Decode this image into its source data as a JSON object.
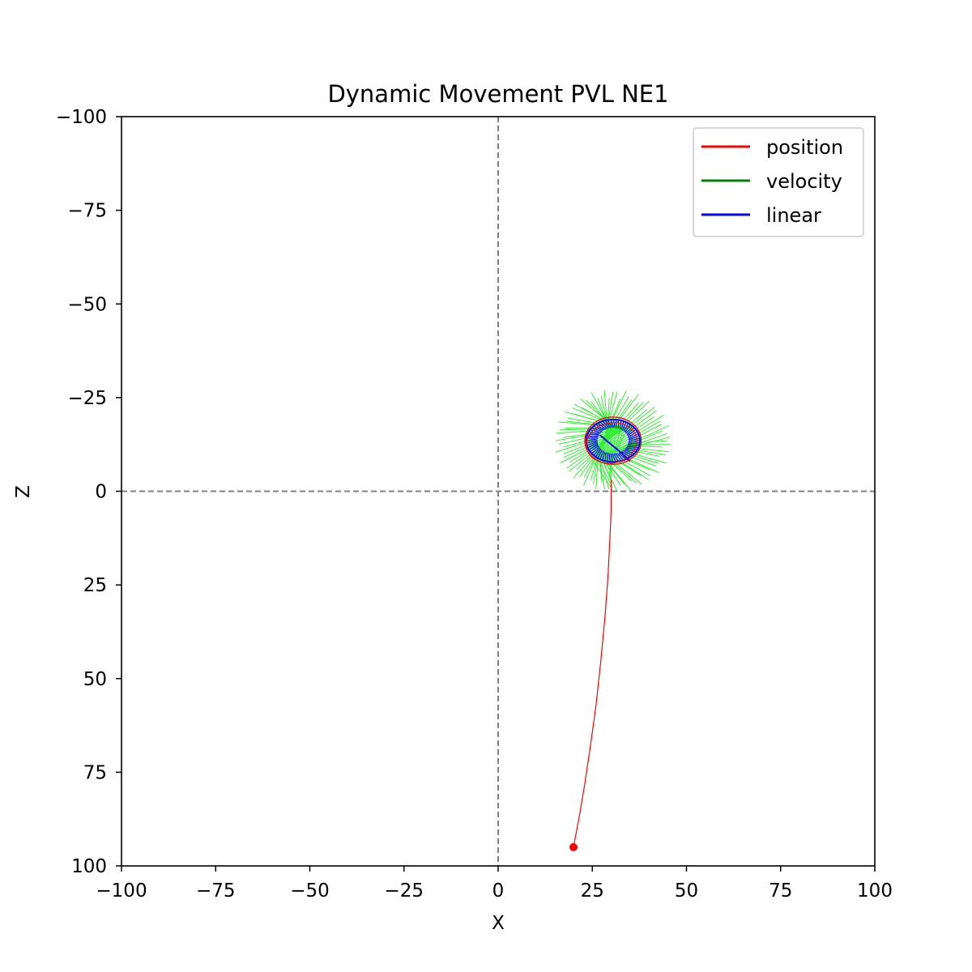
{
  "chart_data": {
    "type": "line",
    "title": "Dynamic Movement PVL NE1",
    "xlabel": "X",
    "ylabel": "Z",
    "xlim": [
      -100,
      100
    ],
    "ylim": [
      -100,
      100
    ],
    "y_inverted": true,
    "xticks": [
      -100,
      -75,
      -50,
      -25,
      0,
      25,
      50,
      75,
      100
    ],
    "yticks": [
      -100,
      -75,
      -50,
      -25,
      0,
      25,
      50,
      75,
      100
    ],
    "xtick_labels": [
      "−100",
      "−75",
      "−50",
      "−25",
      "0",
      "25",
      "50",
      "75",
      "100"
    ],
    "ytick_labels": [
      "−100",
      "−75",
      "−50",
      "−25",
      "0",
      "25",
      "50",
      "75",
      "100"
    ],
    "grid": false,
    "reference_lines": {
      "x": 0,
      "y": 0,
      "style": "dashed",
      "color": "#808080"
    },
    "legend": {
      "placement": "top-right",
      "entries": [
        {
          "label": "position",
          "color": "#ff0000"
        },
        {
          "label": "velocity",
          "color": "#008000"
        },
        {
          "label": "linear",
          "color": "#0000ff"
        }
      ]
    },
    "series": [
      {
        "name": "position",
        "color": "#ff0000",
        "x": [
          20,
          21.5,
          23,
          24.5,
          26,
          27.3,
          28.4,
          29.2,
          29.7,
          30,
          30,
          30,
          30
        ],
        "y": [
          95,
          87,
          78,
          68,
          57,
          45,
          33,
          22,
          12,
          5,
          1,
          -1,
          -3
        ]
      },
      {
        "name": "position-loop",
        "color": "#ff0000",
        "center": [
          30.5,
          -13.5
        ],
        "radius_x": 7.5,
        "radius_y": 6.3
      }
    ],
    "start_marker": {
      "x": 20,
      "y": 95,
      "color": "#ff0000"
    },
    "velocity_color": "#33ee33",
    "linear_color": "#0000ff"
  }
}
